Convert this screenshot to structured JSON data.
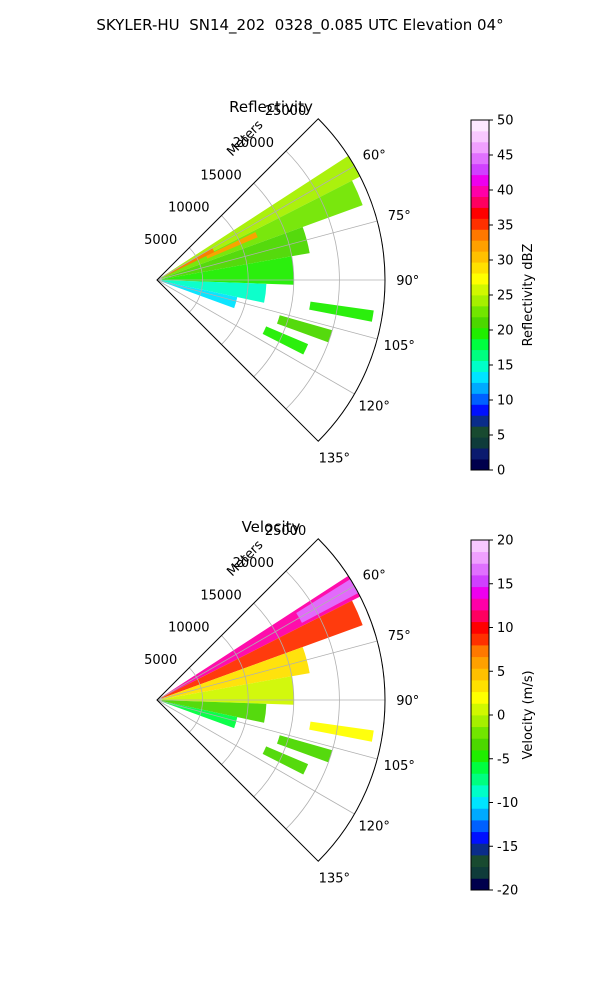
{
  "title": "SKYLER-HU  SN14_202  0328_0.085 UTC Elevation 04°",
  "chart_data": [
    {
      "type": "heatmap",
      "subtype": "polar-sector",
      "title": "Reflectivity",
      "radial_label": "Meters",
      "r_ticks": [
        5000,
        10000,
        15000,
        20000,
        25000
      ],
      "r_max": 25000,
      "theta_ticks": [
        "60°",
        "75°",
        "90°",
        "105°",
        "120°",
        "135°"
      ],
      "theta_range_deg": [
        45,
        135
      ],
      "colorbar": {
        "label": "Reflectivity dBZ",
        "min": 0,
        "max": 50,
        "ticks": [
          0,
          5,
          10,
          15,
          20,
          25,
          30,
          35,
          40,
          45,
          50
        ],
        "colors": [
          "#00004c",
          "#0a1a6e",
          "#0e3b3a",
          "#184a30",
          "#0a2d8a",
          "#0010ff",
          "#0060ff",
          "#00aaff",
          "#00e4ff",
          "#00ffc8",
          "#00ff80",
          "#00ff40",
          "#20ee00",
          "#4cd800",
          "#72e600",
          "#a6f000",
          "#d0f800",
          "#ffff00",
          "#ffe000",
          "#ffc000",
          "#ffa000",
          "#ff7800",
          "#ff3000",
          "#ff0000",
          "#ff0060",
          "#ff00a8",
          "#ee00ee",
          "#d040ff",
          "#e070ff",
          "#f0a0ff",
          "#f8c8ff",
          "#fde8ff"
        ]
      },
      "cells": [
        {
          "r": [
            500,
            25000
          ],
          "theta": [
            57,
            63
          ],
          "value": 24
        },
        {
          "r": [
            500,
            24000
          ],
          "theta": [
            63,
            70
          ],
          "value": 22
        },
        {
          "r": [
            500,
            17000
          ],
          "theta": [
            70,
            80
          ],
          "value": 21
        },
        {
          "r": [
            500,
            15000
          ],
          "theta": [
            80,
            92
          ],
          "value": 20
        },
        {
          "r": [
            500,
            12000
          ],
          "theta": [
            92,
            102
          ],
          "value": 15
        },
        {
          "r": [
            500,
            9000
          ],
          "theta": [
            102,
            110
          ],
          "value": 14
        },
        {
          "r": [
            1000,
            7000
          ],
          "theta": [
            60,
            64
          ],
          "value": 33
        },
        {
          "r": [
            6000,
            12000
          ],
          "theta": [
            64,
            67
          ],
          "value": 32
        },
        {
          "r": [
            17000,
            24000
          ],
          "theta": [
            98,
            101
          ],
          "value": 20
        },
        {
          "r": [
            14000,
            20000
          ],
          "theta": [
            106,
            110
          ],
          "value": 21
        },
        {
          "r": [
            13000,
            18000
          ],
          "theta": [
            113,
            117
          ],
          "value": 19
        }
      ]
    },
    {
      "type": "heatmap",
      "subtype": "polar-sector",
      "title": "Velocity",
      "radial_label": "Meters",
      "r_ticks": [
        5000,
        10000,
        15000,
        20000,
        25000
      ],
      "r_max": 25000,
      "theta_ticks": [
        "60°",
        "75°",
        "90°",
        "105°",
        "120°",
        "135°"
      ],
      "theta_range_deg": [
        45,
        135
      ],
      "colorbar": {
        "label": "Velocity (m/s)",
        "min": -20,
        "max": 20,
        "ticks": [
          -20,
          -15,
          -10,
          -5,
          0,
          5,
          10,
          15,
          20
        ],
        "colors": [
          "#00004c",
          "#0e3b3a",
          "#184a30",
          "#0a2d8a",
          "#0010ff",
          "#0060ff",
          "#00aaff",
          "#00e4ff",
          "#00ffc8",
          "#00ff80",
          "#00ff40",
          "#20ee00",
          "#4cd800",
          "#72e600",
          "#a6f000",
          "#d0f800",
          "#ffff00",
          "#ffe000",
          "#ffc000",
          "#ffa000",
          "#ff7800",
          "#ff3000",
          "#ff0000",
          "#ff0060",
          "#ff00a8",
          "#ee00ee",
          "#d040ff",
          "#e070ff",
          "#f0a0ff",
          "#f8c8ff"
        ]
      },
      "cells": [
        {
          "r": [
            500,
            25000
          ],
          "theta": [
            57,
            63
          ],
          "value": 12
        },
        {
          "r": [
            500,
            24000
          ],
          "theta": [
            63,
            70
          ],
          "value": 8
        },
        {
          "r": [
            500,
            17000
          ],
          "theta": [
            70,
            80
          ],
          "value": 3
        },
        {
          "r": [
            500,
            15000
          ],
          "theta": [
            80,
            92
          ],
          "value": 1
        },
        {
          "r": [
            500,
            12000
          ],
          "theta": [
            92,
            102
          ],
          "value": -4
        },
        {
          "r": [
            500,
            9000
          ],
          "theta": [
            102,
            110
          ],
          "value": -6
        },
        {
          "r": [
            18000,
            25000
          ],
          "theta": [
            58,
            62
          ],
          "value": 16
        },
        {
          "r": [
            17000,
            24000
          ],
          "theta": [
            98,
            101
          ],
          "value": 2
        },
        {
          "r": [
            14000,
            20000
          ],
          "theta": [
            106,
            110
          ],
          "value": -3
        },
        {
          "r": [
            13000,
            18000
          ],
          "theta": [
            113,
            117
          ],
          "value": -4
        }
      ]
    }
  ]
}
